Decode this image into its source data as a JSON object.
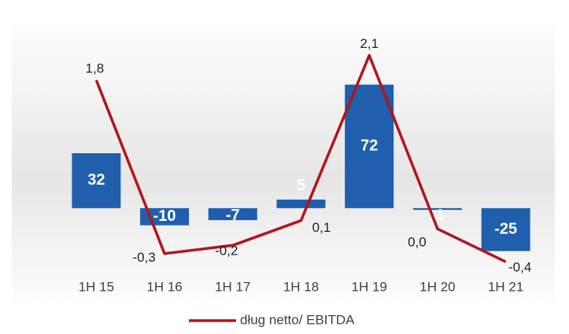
{
  "chart_data": {
    "type": "combo",
    "categories": [
      "1H 15",
      "1H 16",
      "1H 17",
      "1H 18",
      "1H 19",
      "1H 20",
      "1H 21"
    ],
    "series": [
      {
        "type": "bar",
        "color": "#1f5fae",
        "values": [
          32,
          -10,
          -7,
          5,
          72,
          -1,
          -25
        ]
      },
      {
        "type": "line",
        "name": "dług netto/ EBITDA",
        "color": "#b3151b",
        "axis": "y2",
        "values": [
          1.8,
          -0.3,
          -0.2,
          0.1,
          2.1,
          0.0,
          -0.4
        ],
        "value_labels": [
          "1,8",
          "-0,3",
          "-0,2",
          "0,1",
          "2,1",
          "0,0",
          "-0,4"
        ]
      }
    ],
    "ylim": [
      -39,
      103
    ],
    "y2lim": [
      -0.56,
      2.39
    ],
    "legend": "bottom"
  }
}
